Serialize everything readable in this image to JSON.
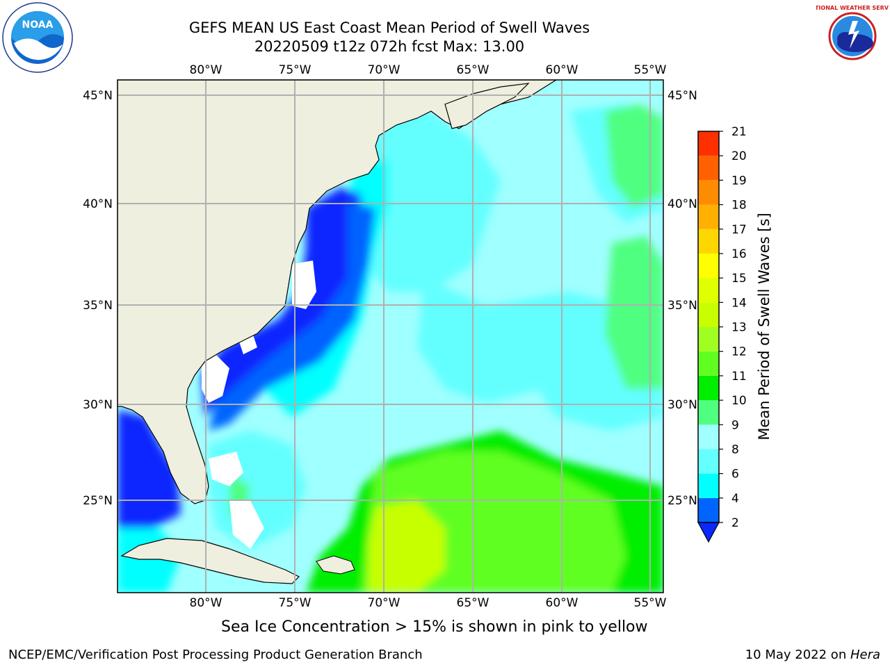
{
  "title": {
    "line1": "GEFS MEAN US East Coast Mean Period of Swell Waves",
    "line2": "20220509 t12z 072h fcst   Max: 13.00"
  },
  "map": {
    "lon_labels": [
      "80°W",
      "75°W",
      "70°W",
      "65°W",
      "60°W",
      "55°W"
    ],
    "lat_labels": [
      "45°N",
      "40°N",
      "35°N",
      "30°N",
      "25°N"
    ],
    "colors": {
      "land": "#efefdf",
      "grid": "#b0b0b0",
      "coast": "#000000"
    }
  },
  "colorbar": {
    "label": "Mean Period of Swell Waves [s]",
    "ticks": [
      "2",
      "4",
      "6",
      "8",
      "9",
      "10",
      "11",
      "12",
      "13",
      "14",
      "15",
      "16",
      "17",
      "18",
      "19",
      "20",
      "21"
    ],
    "colors": [
      "#0064ff",
      "#00ffff",
      "#64ffff",
      "#a0ffff",
      "#50ff80",
      "#00ee00",
      "#60ff20",
      "#a0ff20",
      "#c8ff00",
      "#e0ff00",
      "#ffff00",
      "#ffd700",
      "#ffb000",
      "#ff8c00",
      "#ff6000",
      "#ff3000",
      "#ff0000"
    ],
    "under_color": "#0a28ff"
  },
  "footer": {
    "ice_note": "Sea Ice Concentration > 15% is shown in pink to yellow",
    "credit": "NCEP/EMC/Verification Post Processing Product Generation Branch",
    "date_prefix": "10 May 2022 on ",
    "date_host": "Hera"
  },
  "logos": {
    "noaa_text": "NOAA",
    "nws_text": "NATIONAL WEATHER SERVICE"
  }
}
